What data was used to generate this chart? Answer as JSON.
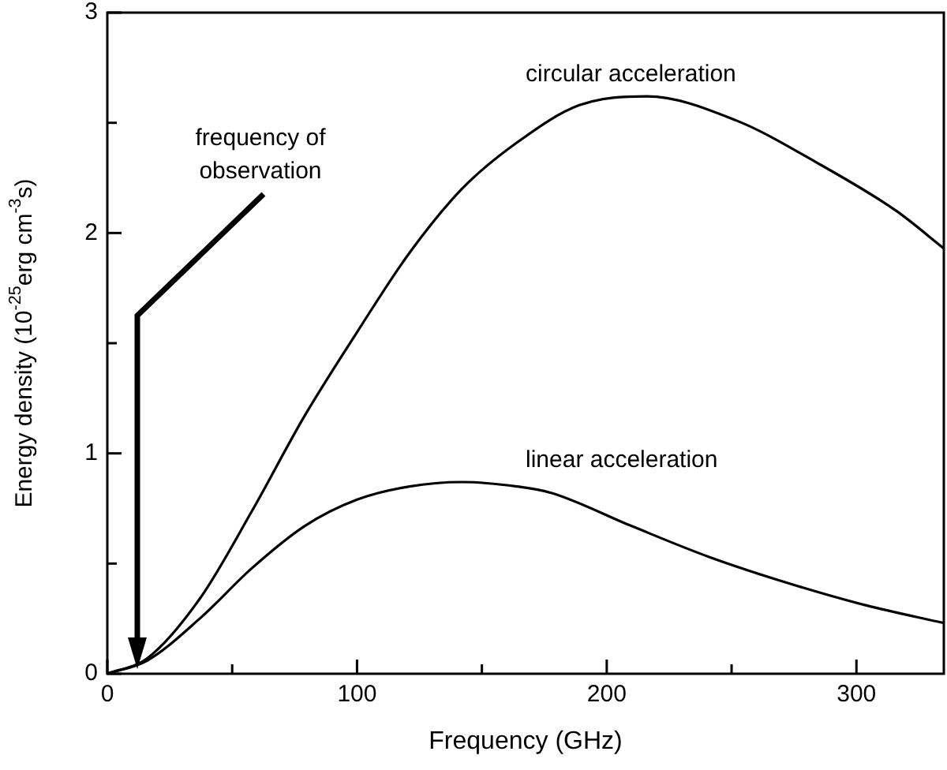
{
  "chart_data": {
    "type": "line",
    "xlabel": "Frequency (GHz)",
    "ylabel": "Energy density (10$^{-25}$erg cm$^{-3}$s)",
    "xlim": [
      0,
      335
    ],
    "ylim": [
      0,
      3
    ],
    "xticks": [
      0,
      {
        "value": 50,
        "label": null
      },
      100,
      {
        "value": 150,
        "label": null
      },
      200,
      {
        "value": 250,
        "label": null
      },
      300
    ],
    "yticks": [
      0,
      {
        "value": 0.5,
        "label": null
      },
      1,
      {
        "value": 1.5,
        "label": null
      },
      2,
      {
        "value": 2.5,
        "label": null
      },
      3
    ],
    "grid": false,
    "legend": false,
    "marker": "none",
    "line_style": "solid",
    "series": [
      {
        "name": "circular acceleration",
        "color": "#000000",
        "x": [
          0,
          16,
          37,
          58,
          79,
          100,
          121,
          142,
          164,
          189,
          216,
          252,
          284,
          316,
          335
        ],
        "values": [
          0,
          0.07,
          0.34,
          0.74,
          1.17,
          1.55,
          1.91,
          2.2,
          2.41,
          2.58,
          2.62,
          2.51,
          2.32,
          2.1,
          1.93
        ]
      },
      {
        "name": "linear acceleration",
        "color": "#000000",
        "x": [
          0,
          16,
          37,
          58,
          79,
          100,
          121,
          142,
          164,
          178,
          210,
          241,
          273,
          304,
          335
        ],
        "values": [
          0,
          0.06,
          0.25,
          0.48,
          0.67,
          0.79,
          0.85,
          0.87,
          0.85,
          0.82,
          0.67,
          0.53,
          0.41,
          0.31,
          0.23
        ]
      }
    ],
    "annotations": [
      "frequency of observation"
    ]
  }
}
